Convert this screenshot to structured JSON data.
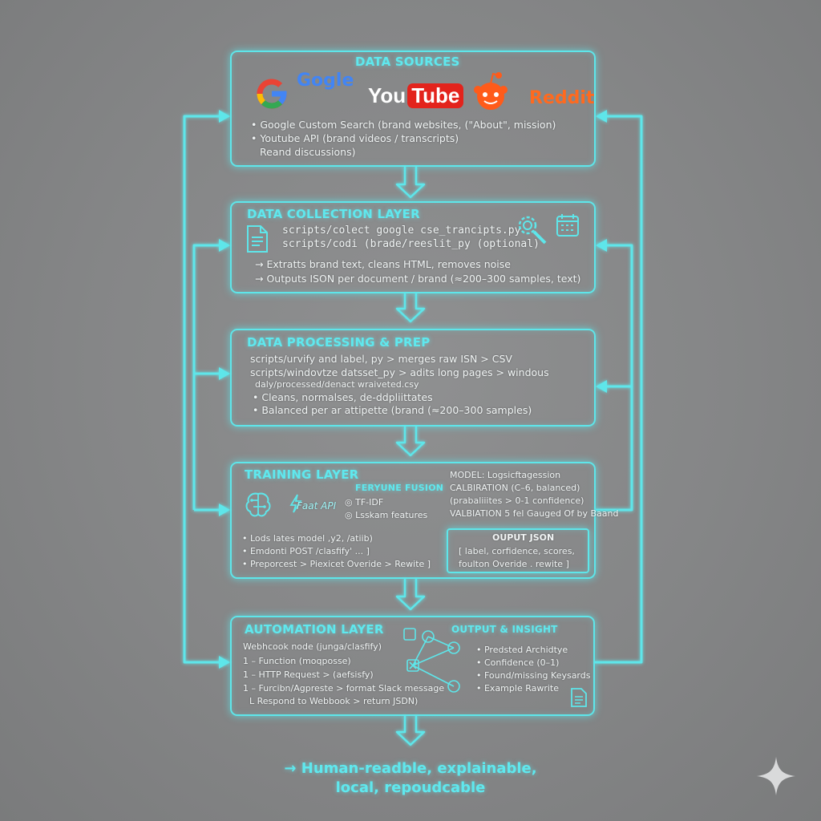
{
  "sources": {
    "title": "DATA SOURCES",
    "logos": {
      "google": "Gogle",
      "youtube_a": "You",
      "youtube_b": "Tube",
      "reddit": "Reddit"
    },
    "lines": [
      "• Google Custom Search (brand websites, (\"About\", mission)",
      "• Youtube API (brand videos / transcripts)",
      "Reand discussions)"
    ]
  },
  "collection": {
    "title": "DATA COLLECTION LAYER",
    "scripts": [
      "scripts/colect google cse_trancipts.py",
      "scripts/codi (brade/reeslit_py (optional)"
    ],
    "lines": [
      "→ Extratts brand text, cleans HTML,  removes noise",
      "→ Outputs ISON per document / brand (≈200–300 samples, text)"
    ]
  },
  "processing": {
    "title": "DATA PROCESSING & PREP",
    "lines": [
      "scripts/urvify and label, py > merges raw ISN > CSV",
      "scripts/windovtze datsset_py > adits long pages > windous",
      "daly/processed/denact wraiveted.csy",
      "• Cleans, normalses, de-ddpliittates",
      "• Balanced per ar attipette (brand (≈200–300 samples)"
    ]
  },
  "training": {
    "title": "TRAINING LAYER",
    "fusion_title": "FERYUNE FUSION",
    "fastapi": "Faat API",
    "features": [
      "◎ TF-IDF",
      "◎ Lsskam features"
    ],
    "model_lines": [
      "MODEL: Logsicftagession",
      "CALBIRATION  (C–6, balanced)",
      "(prabaliiites > 0-1 confidence)",
      "VALBIATION  5 fel Gauged Of by Baand"
    ],
    "lines": [
      "• Lods lates model ,y2, /atiib)",
      "• Emdonti POST /clasfify' ...  ]",
      "• Preporcest  > Piexicet Overide > Rewite  ]"
    ],
    "output_title": "OUPUT JSON",
    "output_lines": [
      "[ label, corfidence, scores,",
      "foulton Overide  . rewite ]"
    ]
  },
  "automation": {
    "title": "AUTOMATION LAYER",
    "insight_title": "OUTPUT & INSIGHT",
    "lines": [
      "Webhcook node (junga/clasfify)",
      "1 – Function (moqposse)",
      "1 – HTTP Request > (aefsisfy)",
      "1 – Furcibn/Agpreste > format Slack message",
      "L  Respond to Webbook > return JSDN)"
    ],
    "insight_lines": [
      "• Predsted Archidtye",
      "• Confidence (0–1)",
      "• Found/missing Keysards",
      "• Example Rawrite"
    ]
  },
  "footer": {
    "line1": "→ Human-readble, explainable,",
    "line2": "local, repoudcable"
  },
  "colors": {
    "accent": "#5ee6ea",
    "background": "#868788",
    "youtube_red": "#e3231c",
    "reddit_orange": "#ff5b1a"
  }
}
